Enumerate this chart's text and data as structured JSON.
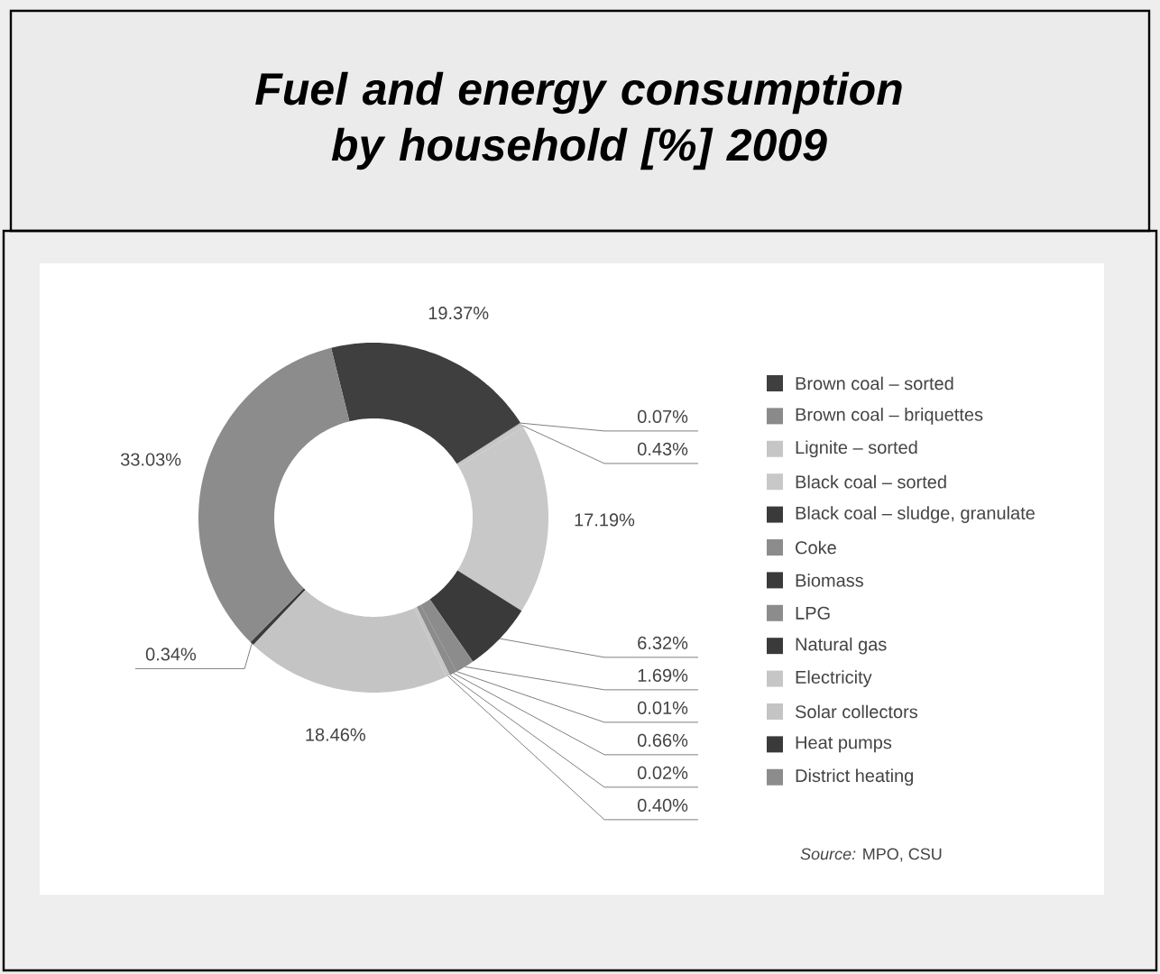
{
  "chart_data": {
    "type": "donut",
    "title": "Fuel and energy consumption by household   [%] 2009",
    "categories": [
      "Brown coal – sorted",
      "Brown coal – briquettes",
      "Lignite – sorted",
      "Black coal – sorted",
      "Black coal – sludge, granulate",
      "Coke",
      "Biomass",
      "LPG",
      "Natural gas",
      "Electricity",
      "Solar collectors",
      "Heat pumps",
      "District heating"
    ],
    "values": [
      19.37,
      0.07,
      0.43,
      17.19,
      6.32,
      1.69,
      0.01,
      0.66,
      0.02,
      0.4,
      18.46,
      0.34,
      33.03
    ],
    "value_labels": [
      "19.37%",
      "0.07%",
      "0.43%",
      "17.19%",
      "6.32%",
      "1.69%",
      "0.01%",
      "0.66%",
      "0.02%",
      "0.40%",
      "18.46%",
      "0.34%",
      "33.03%"
    ],
    "colors": [
      "#3f3f3f",
      "#8a8a8a",
      "#c6c6c6",
      "#c8c8c8",
      "#3a3a3a",
      "#8c8c8c",
      "#3a3a3a",
      "#8c8c8c",
      "#3a3a3a",
      "#c6c6c6",
      "#c4c4c4",
      "#3a3a3a",
      "#8c8c8c"
    ],
    "legend": "right",
    "annotations": [
      "*Source:* MPO, CSU"
    ]
  }
}
